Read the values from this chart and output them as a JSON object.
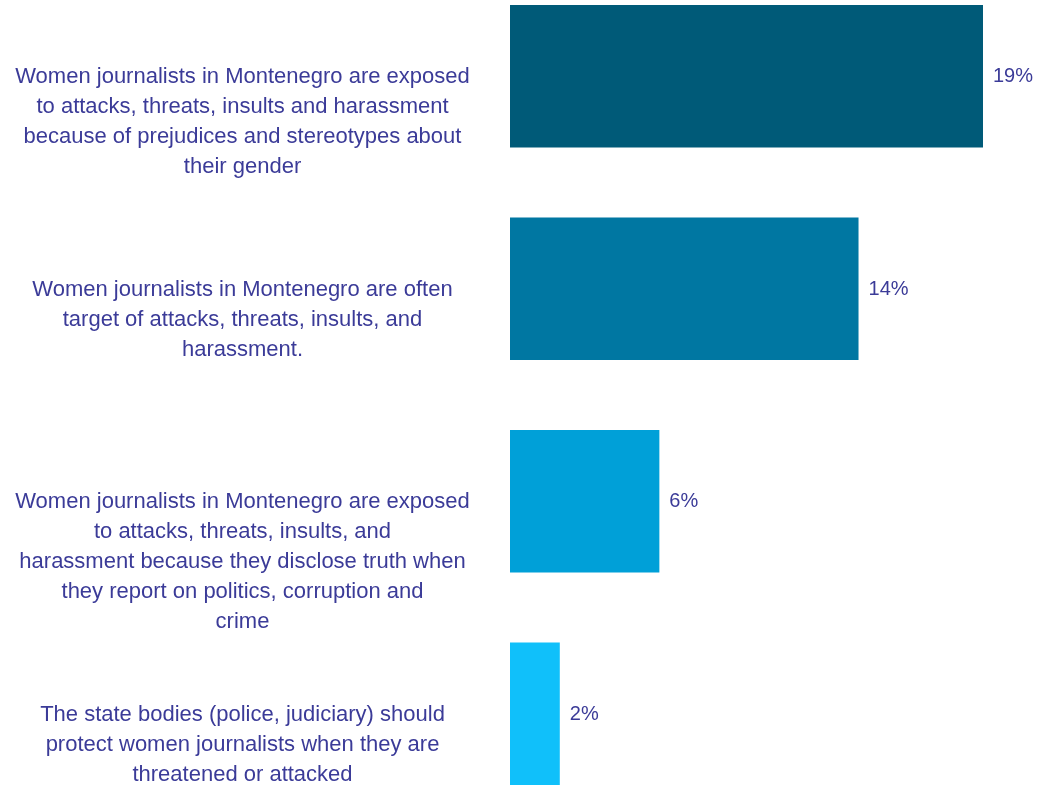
{
  "chart_data": {
    "type": "bar",
    "orientation": "horizontal",
    "categories": [
      "Women journalists in Montenegro are exposed to attacks, threats, insults and harassment because of prejudices and stereotypes about their gender",
      "Women journalists in Montenegro are often target of attacks, threats, insults, and harassment.",
      "Women journalists in Montenegro are exposed to attacks, threats, insults, and harassment because they disclose truth when they report on politics, corruption and crime",
      "The state bodies (police, judiciary) should protect women journalists when they are threatened or attacked"
    ],
    "values": [
      19,
      14,
      6,
      2
    ],
    "colors": [
      "#005a78",
      "#0077a2",
      "#00a0d8",
      "#10c0fa"
    ],
    "value_labels": [
      "19%",
      "14%",
      "6%",
      "2%"
    ],
    "grid": false
  }
}
